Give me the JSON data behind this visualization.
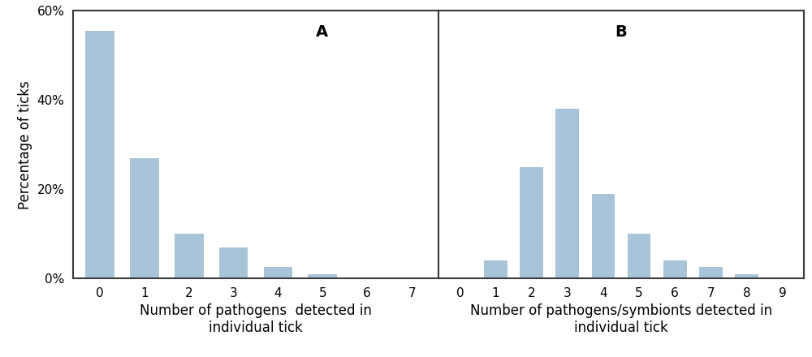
{
  "panel_A": {
    "label": "A",
    "values": [
      55.5,
      27.0,
      10.0,
      7.0,
      2.5,
      1.0,
      0.0,
      0.0
    ],
    "x_ticks": [
      0,
      1,
      2,
      3,
      4,
      5,
      6,
      7
    ],
    "xlabel": "Number of pathogens  detected in\nindividual tick",
    "ylim": [
      0,
      60
    ]
  },
  "panel_B": {
    "label": "B",
    "values": [
      0.0,
      4.0,
      25.0,
      38.0,
      19.0,
      10.0,
      4.0,
      2.5,
      1.0,
      0.0
    ],
    "x_ticks": [
      0,
      1,
      2,
      3,
      4,
      5,
      6,
      7,
      8,
      9
    ],
    "xlabel": "Number of pathogens/symbionts detected in\nindividual tick",
    "ylim": [
      0,
      60
    ]
  },
  "bar_color": "#a8c4d8",
  "bar_edgecolor": "#a8c4d8",
  "ylabel": "Percentage of ticks",
  "yticks": [
    0,
    20,
    40,
    60
  ],
  "ytick_labels": [
    "0%",
    "20%",
    "40%",
    "60%"
  ],
  "background_color": "#ffffff",
  "spine_color": "#3a3a3a",
  "label_fontsize": 12,
  "panel_label_fontsize": 14,
  "tick_fontsize": 11
}
